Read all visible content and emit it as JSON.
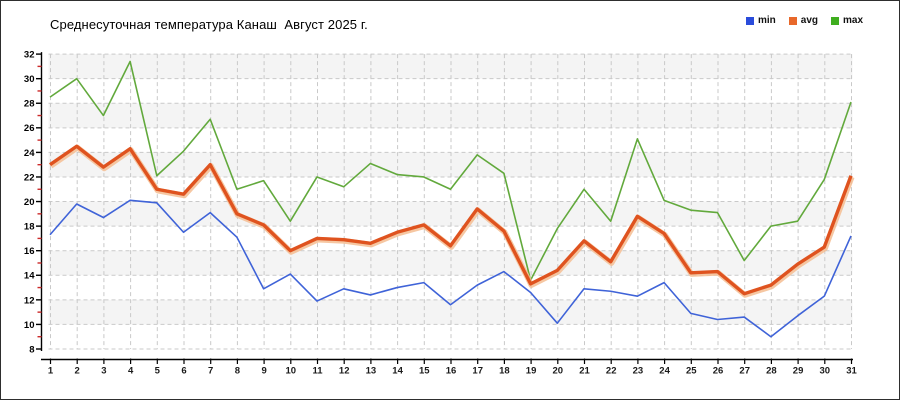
{
  "page": {
    "border_color": "#2e2e2e",
    "background": "#ffffff"
  },
  "chart_data": {
    "type": "line",
    "title": "Среднесуточная температура Канаш  Август 2025 г.",
    "xlabel": "",
    "ylabel": "",
    "ylim": [
      8,
      32
    ],
    "grid": "dashed",
    "legend_position": "top-right",
    "gridline_color": "#c9c9c9",
    "axis_color": "#000000",
    "minor_tick_color": "#cc2a2a",
    "stripe_color": "#f4f4f4",
    "x": [
      1,
      2,
      3,
      4,
      5,
      6,
      7,
      8,
      9,
      10,
      11,
      12,
      13,
      14,
      15,
      16,
      17,
      18,
      19,
      20,
      21,
      22,
      23,
      24,
      25,
      26,
      27,
      28,
      29,
      30,
      31
    ],
    "xticks": [
      1,
      2,
      3,
      4,
      5,
      6,
      7,
      8,
      9,
      10,
      11,
      12,
      13,
      14,
      15,
      16,
      17,
      18,
      19,
      20,
      21,
      22,
      23,
      24,
      25,
      26,
      27,
      28,
      29,
      30,
      31
    ],
    "yticks": [
      8,
      10,
      12,
      14,
      16,
      18,
      20,
      22,
      24,
      26,
      28,
      30,
      32
    ],
    "series": [
      {
        "name": "min",
        "color": "#3f63d8",
        "legend_color": "#2a4cdb",
        "width": 1.6,
        "values": [
          17.3,
          19.8,
          18.7,
          20.1,
          19.9,
          17.5,
          19.1,
          17.1,
          12.9,
          14.1,
          11.9,
          12.9,
          12.4,
          13.0,
          13.4,
          11.6,
          13.2,
          14.3,
          12.6,
          10.1,
          12.9,
          12.7,
          12.3,
          13.4,
          10.9,
          10.4,
          10.6,
          9.0,
          10.7,
          12.3,
          17.2
        ]
      },
      {
        "name": "avg",
        "color": "#df531f",
        "halo_color": "#f4bd92",
        "legend_color": "#e8682a",
        "width": 3.4,
        "values": [
          23.0,
          24.5,
          22.8,
          24.3,
          21.0,
          20.6,
          23.0,
          19.0,
          18.1,
          16.0,
          17.0,
          16.9,
          16.6,
          17.5,
          18.1,
          16.4,
          19.4,
          17.6,
          13.3,
          14.4,
          16.8,
          15.1,
          18.8,
          17.4,
          14.2,
          14.3,
          12.5,
          13.2,
          14.9,
          16.3,
          22.1
        ]
      },
      {
        "name": "max",
        "color": "#62a93c",
        "legend_color": "#3fae1f",
        "width": 1.6,
        "values": [
          28.5,
          30.0,
          27.0,
          31.4,
          22.1,
          24.1,
          26.7,
          21.0,
          21.7,
          18.4,
          22.0,
          21.2,
          23.1,
          22.2,
          22.0,
          21.0,
          23.8,
          22.3,
          13.6,
          17.8,
          21.0,
          18.4,
          25.1,
          20.1,
          19.3,
          19.1,
          15.2,
          18.0,
          18.4,
          21.8,
          28.1
        ]
      }
    ]
  }
}
